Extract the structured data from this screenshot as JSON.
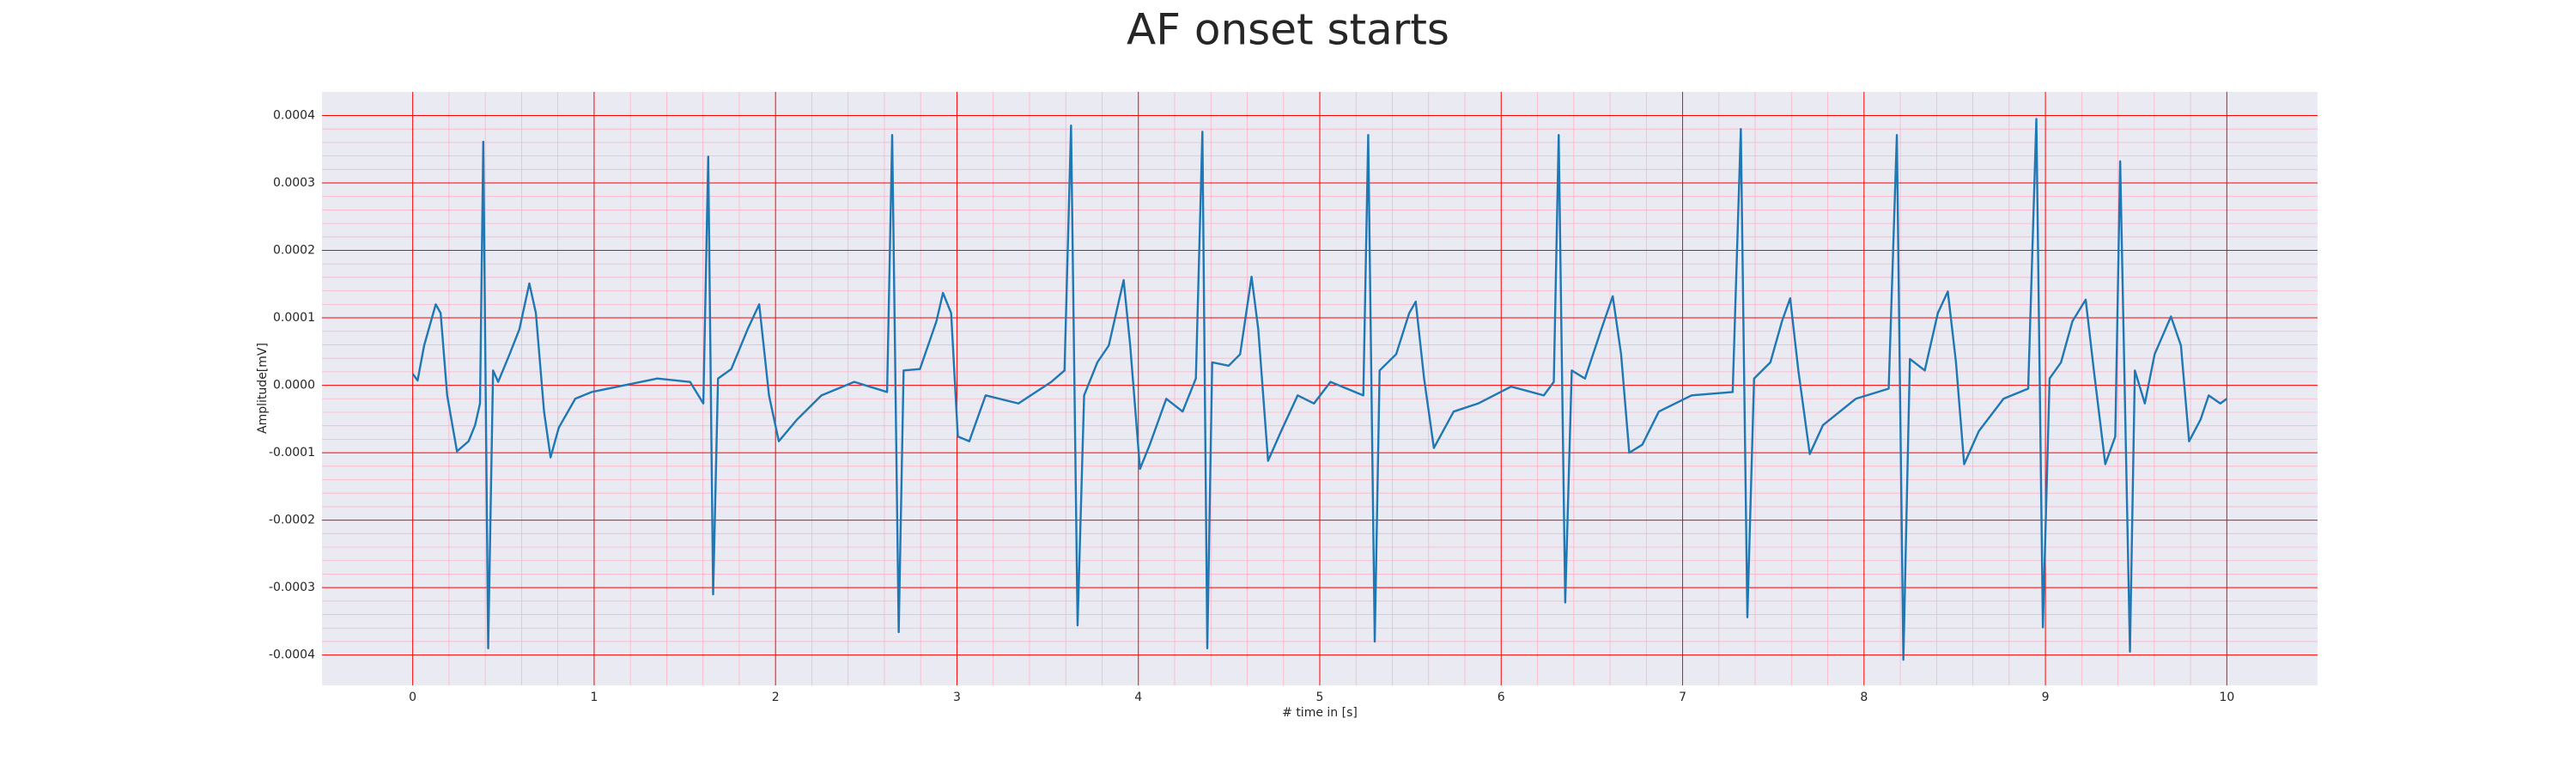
{
  "chart_data": {
    "type": "line",
    "title": "AF onset starts",
    "x_label": "# time in [s]",
    "y_label": "Amplitude[mV]",
    "xlim": [
      -0.5,
      10.5
    ],
    "ylim": [
      -0.000445,
      0.000435
    ],
    "xticks": [
      0,
      1,
      2,
      3,
      4,
      5,
      6,
      7,
      8,
      9,
      10
    ],
    "yticks": [
      {
        "value": -0.0004,
        "label": "-0.0004"
      },
      {
        "value": -0.0003,
        "label": "-0.0003"
      },
      {
        "value": -0.0002,
        "label": "-0.0002"
      },
      {
        "value": -0.0001,
        "label": "-0.0001"
      },
      {
        "value": 0,
        "label": "0.0000"
      },
      {
        "value": 0.0001,
        "label": "0.0001"
      },
      {
        "value": 0.0002,
        "label": "0.0002"
      },
      {
        "value": 0.0003,
        "label": "0.0003"
      },
      {
        "value": 0.0004,
        "label": "0.0004"
      }
    ],
    "grid": true,
    "grid_color": "#ff0000",
    "minor_grid": true,
    "minor_grid_color": "#ffb3c6",
    "background": "#eaeaf2",
    "x": [
      0.0,
      0.027,
      0.063,
      0.127,
      0.154,
      0.19,
      0.244,
      0.308,
      0.344,
      0.371,
      0.389,
      0.416,
      0.443,
      0.471,
      0.534,
      0.588,
      0.643,
      0.679,
      0.724,
      0.76,
      0.805,
      0.896,
      0.986,
      1.167,
      1.348,
      1.529,
      1.602,
      1.629,
      1.656,
      1.683,
      1.756,
      1.846,
      1.91,
      1.964,
      2.018,
      2.118,
      2.253,
      2.434,
      2.615,
      2.643,
      2.679,
      2.706,
      2.796,
      2.887,
      2.923,
      2.968,
      3.005,
      3.068,
      3.158,
      3.339,
      3.52,
      3.593,
      3.629,
      3.665,
      3.701,
      3.774,
      3.837,
      3.919,
      3.955,
      4.009,
      4.063,
      4.154,
      4.244,
      4.317,
      4.353,
      4.38,
      4.407,
      4.498,
      4.561,
      4.624,
      4.661,
      4.715,
      4.787,
      4.878,
      4.968,
      5.059,
      5.24,
      5.267,
      5.303,
      5.33,
      5.421,
      5.493,
      5.529,
      5.575,
      5.629,
      5.738,
      5.873,
      6.054,
      6.235,
      6.29,
      6.317,
      6.353,
      6.389,
      6.462,
      6.552,
      6.615,
      6.661,
      6.706,
      6.778,
      6.869,
      7.05,
      7.276,
      7.321,
      7.357,
      7.394,
      7.484,
      7.548,
      7.593,
      7.638,
      7.701,
      7.774,
      7.955,
      8.136,
      8.181,
      8.217,
      8.253,
      8.335,
      8.407,
      8.462,
      8.507,
      8.552,
      8.633,
      8.769,
      8.905,
      8.95,
      8.986,
      9.023,
      9.086,
      9.149,
      9.222,
      9.267,
      9.33,
      9.385,
      9.412,
      9.466,
      9.493,
      9.548,
      9.602,
      9.692,
      9.747,
      9.792,
      9.855,
      9.9,
      9.964,
      10.0
    ],
    "series": [
      {
        "color": "#1f77b4",
        "values": [
          1.7e-05,
          7e-06,
          5.9e-05,
          0.00012,
          0.000107,
          -1.5e-05,
          -9.8e-05,
          -8.3e-05,
          -5.9e-05,
          -2.7e-05,
          0.000361,
          -0.00039,
          2.2e-05,
          5e-06,
          4.6e-05,
          8.3e-05,
          0.000151,
          0.000107,
          -3.9e-05,
          -0.000107,
          -6.3e-05,
          -2e-05,
          -1e-05,
          0.0,
          1e-05,
          5e-06,
          -2.7e-05,
          0.000339,
          -0.00031,
          1e-05,
          2.4e-05,
          8.3e-05,
          0.00012,
          -1.5e-05,
          -8.3e-05,
          -5.1e-05,
          -1.5e-05,
          5e-06,
          -1e-05,
          0.000371,
          -0.000366,
          2.2e-05,
          2.4e-05,
          9.5e-05,
          0.000137,
          0.000107,
          -7.6e-05,
          -8.3e-05,
          -1.5e-05,
          -2.7e-05,
          5e-06,
          2.2e-05,
          0.000385,
          -0.000356,
          -1.5e-05,
          3.4e-05,
          5.9e-05,
          0.000156,
          5.9e-05,
          -0.000124,
          -8.8e-05,
          -2e-05,
          -3.9e-05,
          1e-05,
          0.000376,
          -0.00039,
          3.4e-05,
          2.9e-05,
          4.6e-05,
          0.000161,
          8.3e-05,
          -0.000112,
          -6.8e-05,
          -1.5e-05,
          -2.7e-05,
          5e-06,
          -1.5e-05,
          0.000371,
          -0.00038,
          2.2e-05,
          4.6e-05,
          0.000107,
          0.000124,
          1e-05,
          -9.3e-05,
          -3.9e-05,
          -2.7e-05,
          -2e-06,
          -1.5e-05,
          5e-06,
          0.000371,
          -0.000322,
          2.2e-05,
          1e-05,
          8.3e-05,
          0.000132,
          4.6e-05,
          -0.0001,
          -8.8e-05,
          -3.9e-05,
          -1.5e-05,
          -1e-05,
          0.00038,
          -0.000344,
          1e-05,
          3.4e-05,
          9.5e-05,
          0.000129,
          2.2e-05,
          -0.000102,
          -5.9e-05,
          -2e-05,
          -5e-06,
          0.000371,
          -0.000407,
          3.9e-05,
          2.2e-05,
          0.000107,
          0.000139,
          3.4e-05,
          -0.000117,
          -6.8e-05,
          -2e-05,
          -5e-06,
          0.000395,
          -0.000359,
          1e-05,
          3.4e-05,
          9.5e-05,
          0.000127,
          2.2e-05,
          -0.000117,
          -7.6e-05,
          0.000332,
          -0.000395,
          2.2e-05,
          -2.7e-05,
          4.6e-05,
          0.000102,
          5.9e-05,
          -8.3e-05,
          -5.1e-05,
          -1.5e-05,
          -2.7e-05,
          -2e-05
        ]
      }
    ]
  }
}
